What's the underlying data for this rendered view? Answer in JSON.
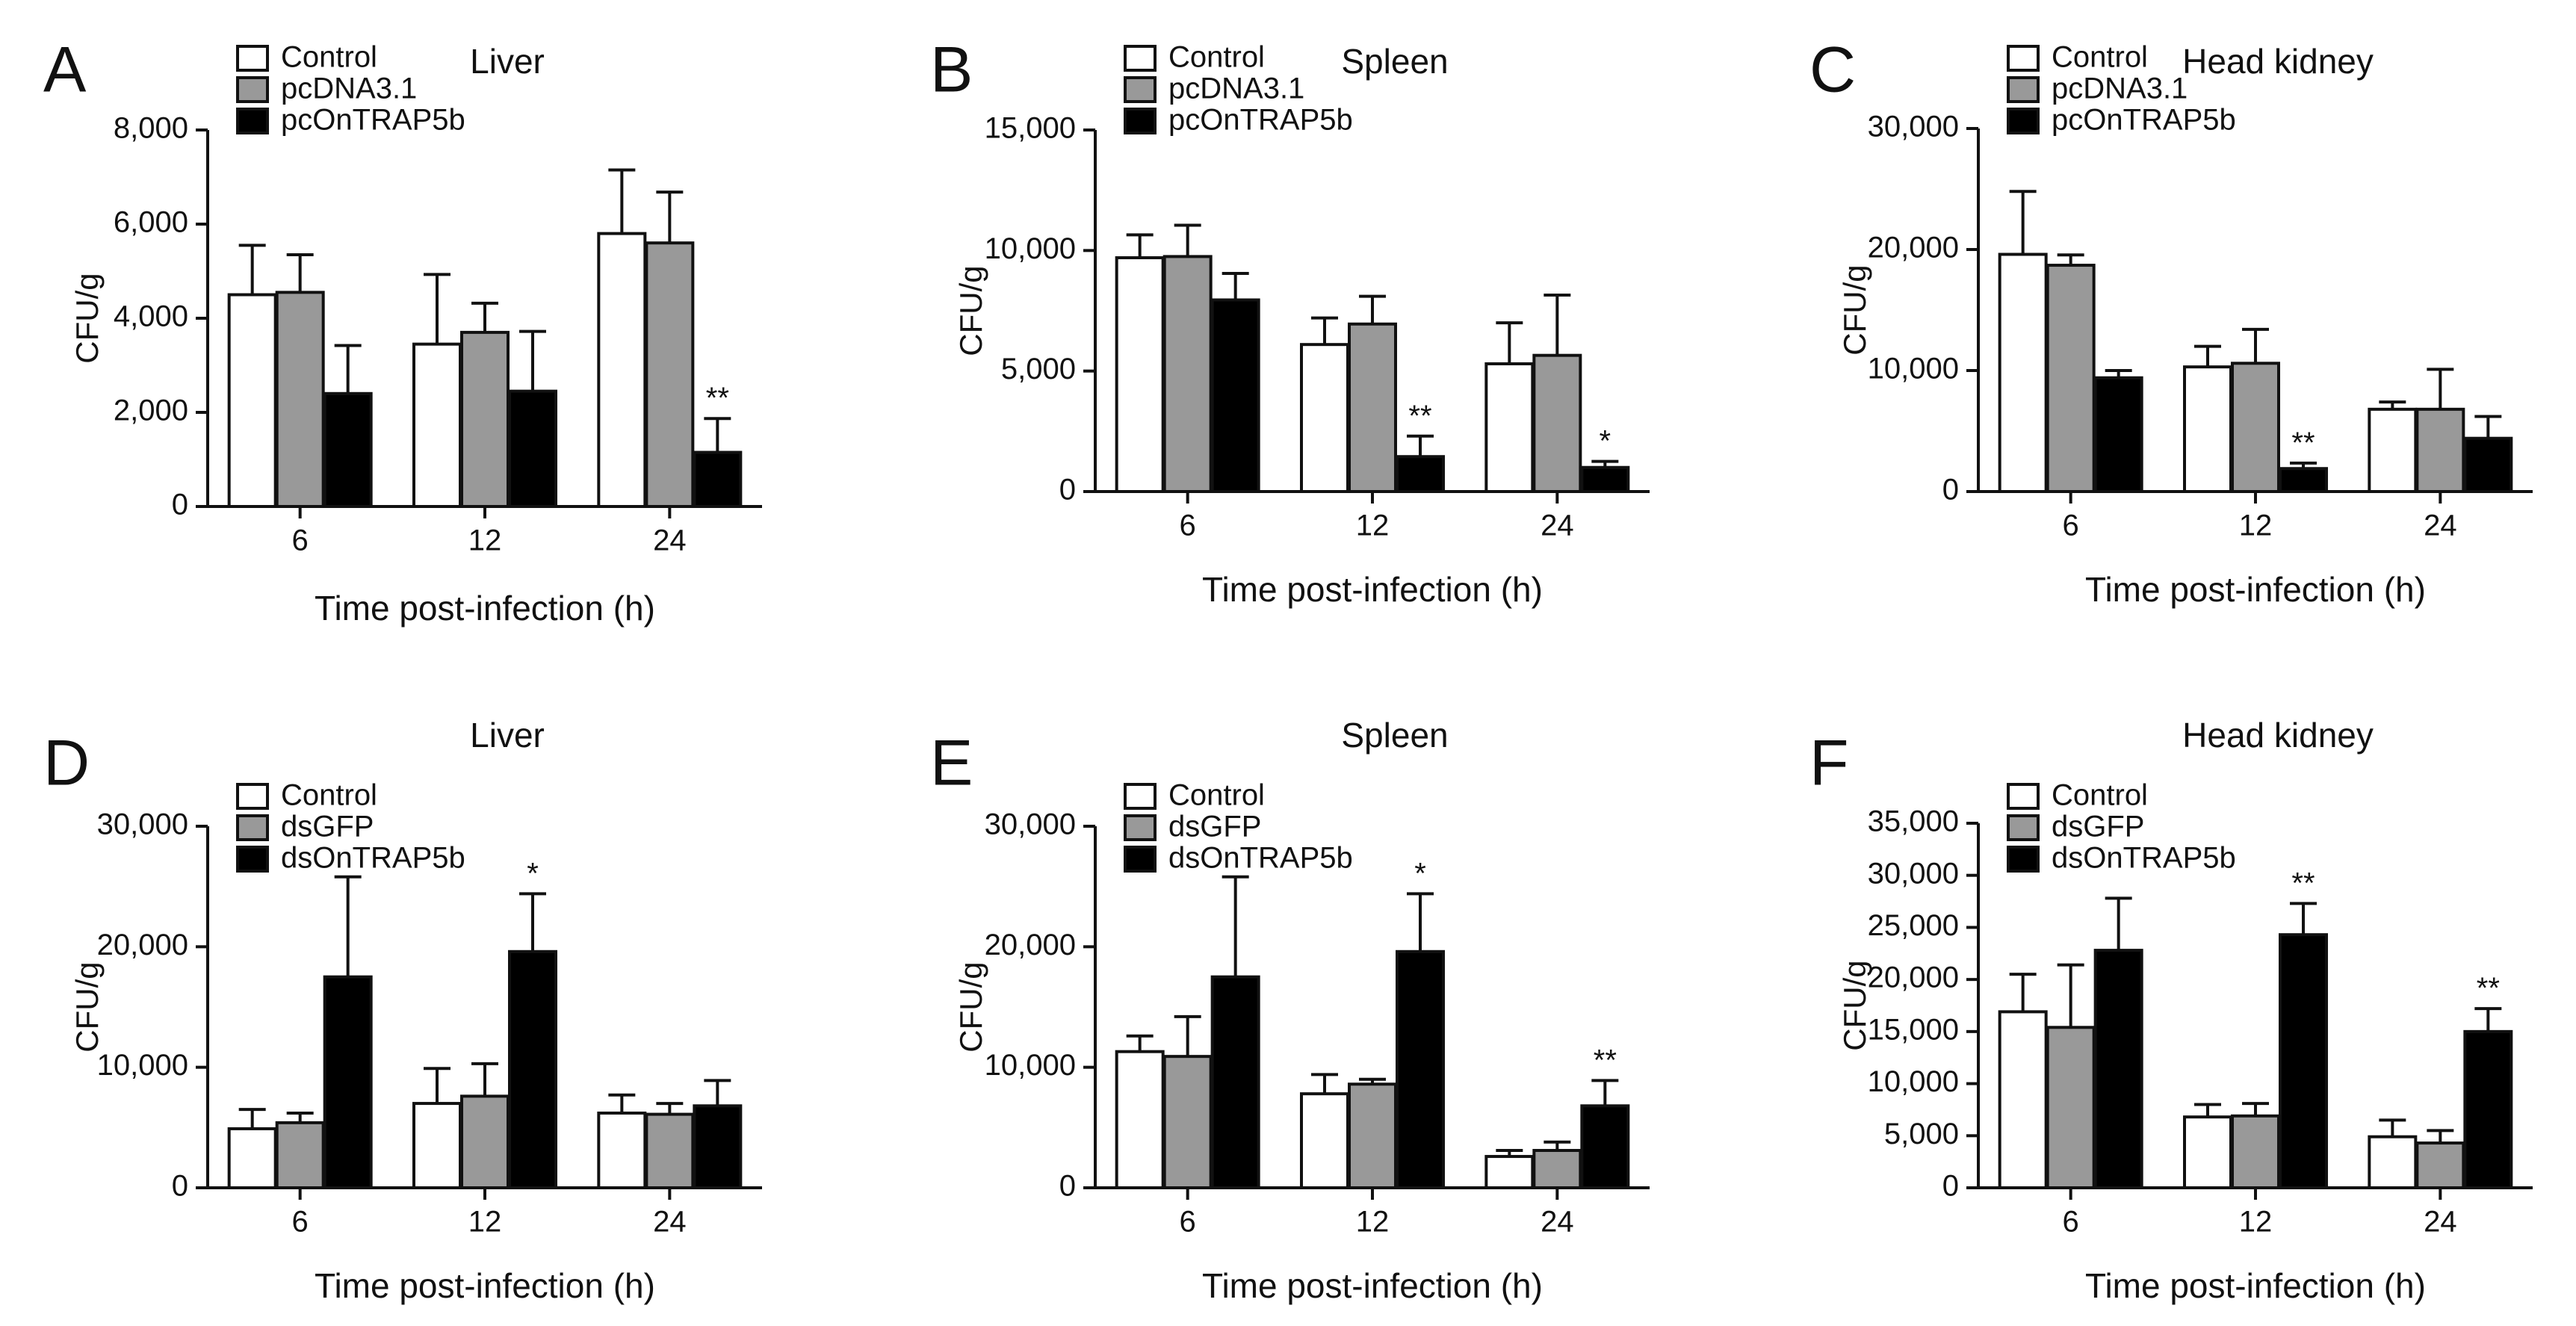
{
  "colors": {
    "control": "#ffffff",
    "vector": "#999999",
    "treatment": "#000000",
    "axis": "#111111"
  },
  "chart_data": [
    {
      "panel": "A",
      "type": "bar",
      "title": "Liver",
      "xlabel": "Time post-infection (h)",
      "ylabel": "CFU/g",
      "categories": [
        "6",
        "12",
        "24"
      ],
      "ylim": [
        0,
        8000
      ],
      "yticks": [
        0,
        2000,
        4000,
        6000,
        8000
      ],
      "ytick_labels": [
        "0",
        "2,000",
        "4,000",
        "6,000",
        "8,000"
      ],
      "legend": "top-left",
      "series": [
        {
          "name": "Control",
          "color": "#ffffff",
          "values": [
            4500,
            3450,
            5800
          ],
          "errors": [
            1050,
            1480,
            1350
          ]
        },
        {
          "name": "pcDNA3.1",
          "color": "#999999",
          "values": [
            4550,
            3700,
            5600
          ],
          "errors": [
            800,
            620,
            1080
          ]
        },
        {
          "name": "pcOnTRAP5b",
          "color": "#000000",
          "values": [
            2400,
            2450,
            1150
          ],
          "errors": [
            1020,
            1270,
            720
          ]
        }
      ],
      "annotations": [
        {
          "category": 2,
          "series": 2,
          "text": "**"
        }
      ]
    },
    {
      "panel": "B",
      "type": "bar",
      "title": "Spleen",
      "xlabel": "Time post-infection (h)",
      "ylabel": "CFU/g",
      "categories": [
        "6",
        "12",
        "24"
      ],
      "ylim": [
        0,
        15000
      ],
      "yticks": [
        0,
        5000,
        10000,
        15000
      ],
      "ytick_labels": [
        "0",
        "5,000",
        "10,000",
        "15,000"
      ],
      "legend": "top-left",
      "series": [
        {
          "name": "Control",
          "color": "#ffffff",
          "values": [
            9700,
            6100,
            5300
          ],
          "errors": [
            950,
            1100,
            1700
          ]
        },
        {
          "name": "pcDNA3.1",
          "color": "#999999",
          "values": [
            9750,
            6950,
            5650
          ],
          "errors": [
            1300,
            1150,
            2500
          ]
        },
        {
          "name": "pcOnTRAP5b",
          "color": "#000000",
          "values": [
            7950,
            1450,
            1000
          ],
          "errors": [
            1100,
            850,
            250
          ]
        }
      ],
      "annotations": [
        {
          "category": 1,
          "series": 2,
          "text": "**"
        },
        {
          "category": 2,
          "series": 2,
          "text": "*"
        }
      ]
    },
    {
      "panel": "C",
      "type": "bar",
      "title": "Head kidney",
      "xlabel": "Time post-infection (h)",
      "ylabel": "CFU/g",
      "categories": [
        "6",
        "12",
        "24"
      ],
      "ylim": [
        0,
        30000
      ],
      "yticks": [
        0,
        10000,
        20000,
        30000
      ],
      "ytick_labels": [
        "0",
        "10,000",
        "20,000",
        "30,000"
      ],
      "legend": "top-left",
      "series": [
        {
          "name": "Control",
          "color": "#ffffff",
          "values": [
            19600,
            10300,
            6800
          ],
          "errors": [
            5200,
            1700,
            600
          ]
        },
        {
          "name": "pcDNA3.1",
          "color": "#999999",
          "values": [
            18700,
            10600,
            6800
          ],
          "errors": [
            850,
            2800,
            3300
          ]
        },
        {
          "name": "pcOnTRAP5b",
          "color": "#000000",
          "values": [
            9400,
            1900,
            4400
          ],
          "errors": [
            600,
            450,
            1800
          ]
        }
      ],
      "annotations": [
        {
          "category": 1,
          "series": 2,
          "text": "**"
        }
      ]
    },
    {
      "panel": "D",
      "type": "bar",
      "title": "Liver",
      "xlabel": "Time post-infection (h)",
      "ylabel": "CFU/g",
      "categories": [
        "6",
        "12",
        "24"
      ],
      "ylim": [
        0,
        30000
      ],
      "yticks": [
        0,
        10000,
        20000,
        30000
      ],
      "ytick_labels": [
        "0",
        "10,000",
        "20,000",
        "30,000"
      ],
      "legend": "top-left",
      "series": [
        {
          "name": "Control",
          "color": "#ffffff",
          "values": [
            4900,
            7000,
            6200
          ],
          "errors": [
            1600,
            2900,
            1500
          ]
        },
        {
          "name": "dsGFP",
          "color": "#999999",
          "values": [
            5400,
            7600,
            6100
          ],
          "errors": [
            800,
            2700,
            900
          ]
        },
        {
          "name": "dsOnTRAP5b",
          "color": "#000000",
          "values": [
            17500,
            19600,
            6800
          ],
          "errors": [
            8300,
            4800,
            2100
          ]
        }
      ],
      "annotations": [
        {
          "category": 1,
          "series": 2,
          "text": "*"
        }
      ]
    },
    {
      "panel": "E",
      "type": "bar",
      "title": "Spleen",
      "xlabel": "Time post-infection (h)",
      "ylabel": "CFU/g",
      "categories": [
        "6",
        "12",
        "24"
      ],
      "ylim": [
        0,
        30000
      ],
      "yticks": [
        0,
        10000,
        20000,
        30000
      ],
      "ytick_labels": [
        "0",
        "10,000",
        "20,000",
        "30,000"
      ],
      "legend": "top-left",
      "series": [
        {
          "name": "Control",
          "color": "#ffffff",
          "values": [
            11300,
            7800,
            2600
          ],
          "errors": [
            1300,
            1600,
            500
          ]
        },
        {
          "name": "dsGFP",
          "color": "#999999",
          "values": [
            10900,
            8600,
            3100
          ],
          "errors": [
            3300,
            400,
            700
          ]
        },
        {
          "name": "dsOnTRAP5b",
          "color": "#000000",
          "values": [
            17500,
            19600,
            6800
          ],
          "errors": [
            8300,
            4800,
            2100
          ]
        }
      ],
      "annotations": [
        {
          "category": 1,
          "series": 2,
          "text": "*"
        },
        {
          "category": 2,
          "series": 2,
          "text": "**"
        }
      ]
    },
    {
      "panel": "F",
      "type": "bar",
      "title": "Head kidney",
      "xlabel": "Time post-infection (h)",
      "ylabel": "CFU/g",
      "categories": [
        "6",
        "12",
        "24"
      ],
      "ylim": [
        0,
        35000
      ],
      "yticks": [
        0,
        5000,
        10000,
        15000,
        20000,
        25000,
        30000,
        35000
      ],
      "ytick_labels": [
        "0",
        "5,000",
        "10,000",
        "15,000",
        "20,000",
        "25,000",
        "30,000",
        "35,000"
      ],
      "legend": "top-left",
      "series": [
        {
          "name": "Control",
          "color": "#ffffff",
          "values": [
            16900,
            6800,
            4900
          ],
          "errors": [
            3600,
            1200,
            1600
          ]
        },
        {
          "name": "dsGFP",
          "color": "#999999",
          "values": [
            15400,
            6900,
            4300
          ],
          "errors": [
            6000,
            1200,
            1200
          ]
        },
        {
          "name": "dsOnTRAP5b",
          "color": "#000000",
          "values": [
            22800,
            24300,
            15000
          ],
          "errors": [
            5000,
            3000,
            2200
          ]
        }
      ],
      "annotations": [
        {
          "category": 1,
          "series": 2,
          "text": "**"
        },
        {
          "category": 2,
          "series": 2,
          "text": "**"
        }
      ]
    }
  ]
}
